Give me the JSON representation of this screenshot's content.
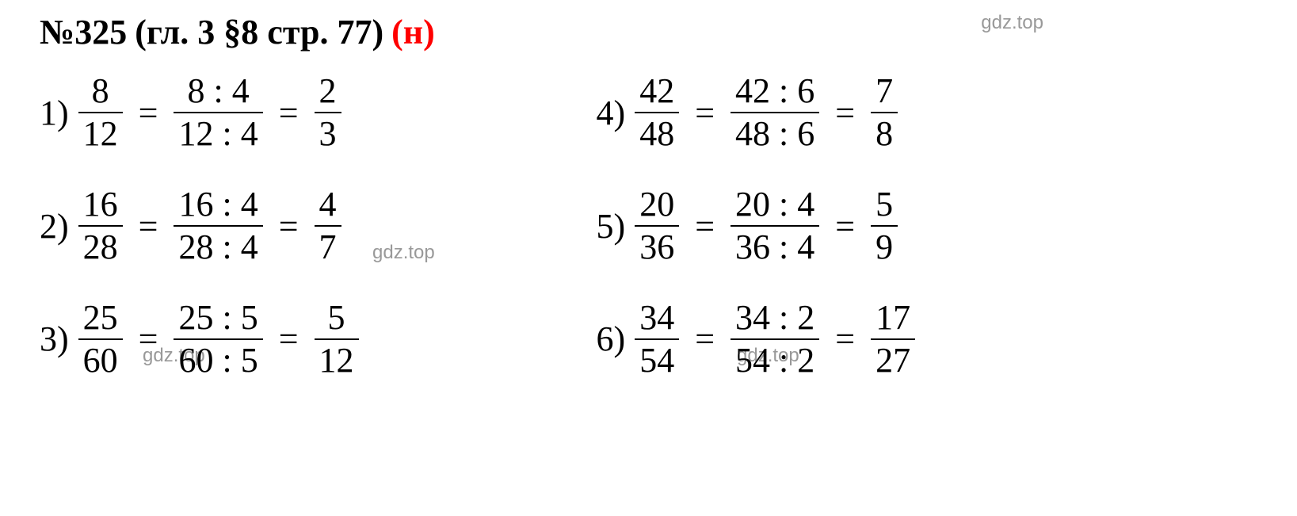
{
  "header": {
    "problem_number": "№325",
    "location": "(гл. 3 §8 стр. 77)",
    "marker": "(н)"
  },
  "watermark_text": "gdz.top",
  "colors": {
    "text": "#000000",
    "red": "#ff0000",
    "watermark": "#999999",
    "background": "#ffffff"
  },
  "fontsize": {
    "header": 44,
    "body": 44,
    "watermark": 24
  },
  "problems": [
    {
      "num": "1)",
      "f1_num": "8",
      "f1_denom": "12",
      "f2_num": "8 : 4",
      "f2_denom": "12 : 4",
      "f3_num": "2",
      "f3_denom": "3"
    },
    {
      "num": "2)",
      "f1_num": "16",
      "f1_denom": "28",
      "f2_num": "16 : 4",
      "f2_denom": "28 : 4",
      "f3_num": "4",
      "f3_denom": "7"
    },
    {
      "num": "3)",
      "f1_num": "25",
      "f1_denom": "60",
      "f2_num": "25 : 5",
      "f2_denom": "60 : 5",
      "f3_num": "5",
      "f3_denom": "12"
    },
    {
      "num": "4)",
      "f1_num": "42",
      "f1_denom": "48",
      "f2_num": "42 : 6",
      "f2_denom": "48 : 6",
      "f3_num": "7",
      "f3_denom": "8"
    },
    {
      "num": "5)",
      "f1_num": "20",
      "f1_denom": "36",
      "f2_num": "20 : 4",
      "f2_denom": "36 : 4",
      "f3_num": "5",
      "f3_denom": "9"
    },
    {
      "num": "6)",
      "f1_num": "34",
      "f1_denom": "54",
      "f2_num": "34 : 2",
      "f2_denom": "54 : 2",
      "f3_num": "17",
      "f3_denom": "27"
    }
  ]
}
